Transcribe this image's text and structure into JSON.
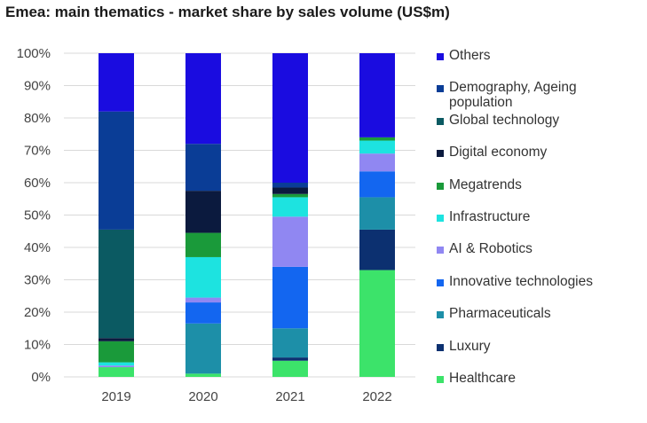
{
  "chart_data": {
    "type": "bar",
    "stacked": true,
    "title": "Emea: main thematics - market share by sales volume (US$m)",
    "categories": [
      "2019",
      "2020",
      "2021",
      "2022"
    ],
    "ylim": [
      0,
      100
    ],
    "yticks": [
      "0%",
      "10%",
      "20%",
      "30%",
      "40%",
      "50%",
      "60%",
      "70%",
      "80%",
      "90%",
      "100%"
    ],
    "grid": true,
    "legend_position": "right",
    "series": [
      {
        "name": "Healthcare",
        "color": "#3ce36a",
        "values": [
          3,
          1,
          5,
          33
        ]
      },
      {
        "name": "Luxury",
        "color": "#0c3070",
        "values": [
          0,
          0,
          1,
          12.5
        ]
      },
      {
        "name": "Pharmaceuticals",
        "color": "#1d8fa8",
        "values": [
          0,
          15.5,
          9,
          10
        ]
      },
      {
        "name": "Innovative technologies",
        "color": "#1366f0",
        "values": [
          0,
          6.5,
          19,
          8
        ]
      },
      {
        "name": "AI & Robotics",
        "color": "#9087f2",
        "values": [
          0.5,
          1.5,
          15.5,
          5.5
        ]
      },
      {
        "name": "Infrastructure",
        "color": "#1de3e0",
        "values": [
          1,
          12.5,
          6,
          4
        ]
      },
      {
        "name": "Megatrends",
        "color": "#1a9a3a",
        "values": [
          6.5,
          7.5,
          1,
          1
        ]
      },
      {
        "name": "Digital economy",
        "color": "#0b1a3e",
        "values": [
          1,
          13,
          2,
          0
        ]
      },
      {
        "name": "Global technology",
        "color": "#0b5a62",
        "values": [
          33.5,
          0,
          0,
          0
        ]
      },
      {
        "name": "Demography, Ageing population",
        "color": "#0a3d96",
        "values": [
          36.5,
          14.5,
          1.5,
          0
        ]
      },
      {
        "name": "Others",
        "color": "#1a0ce0",
        "values": [
          18,
          28,
          40,
          26
        ]
      }
    ],
    "legend_order": [
      "Others",
      "Demography, Ageing population",
      "Global technology",
      "Digital economy",
      "Megatrends",
      "Infrastructure",
      "AI & Robotics",
      "Innovative technologies",
      "Pharmaceuticals",
      "Luxury",
      "Healthcare"
    ]
  }
}
